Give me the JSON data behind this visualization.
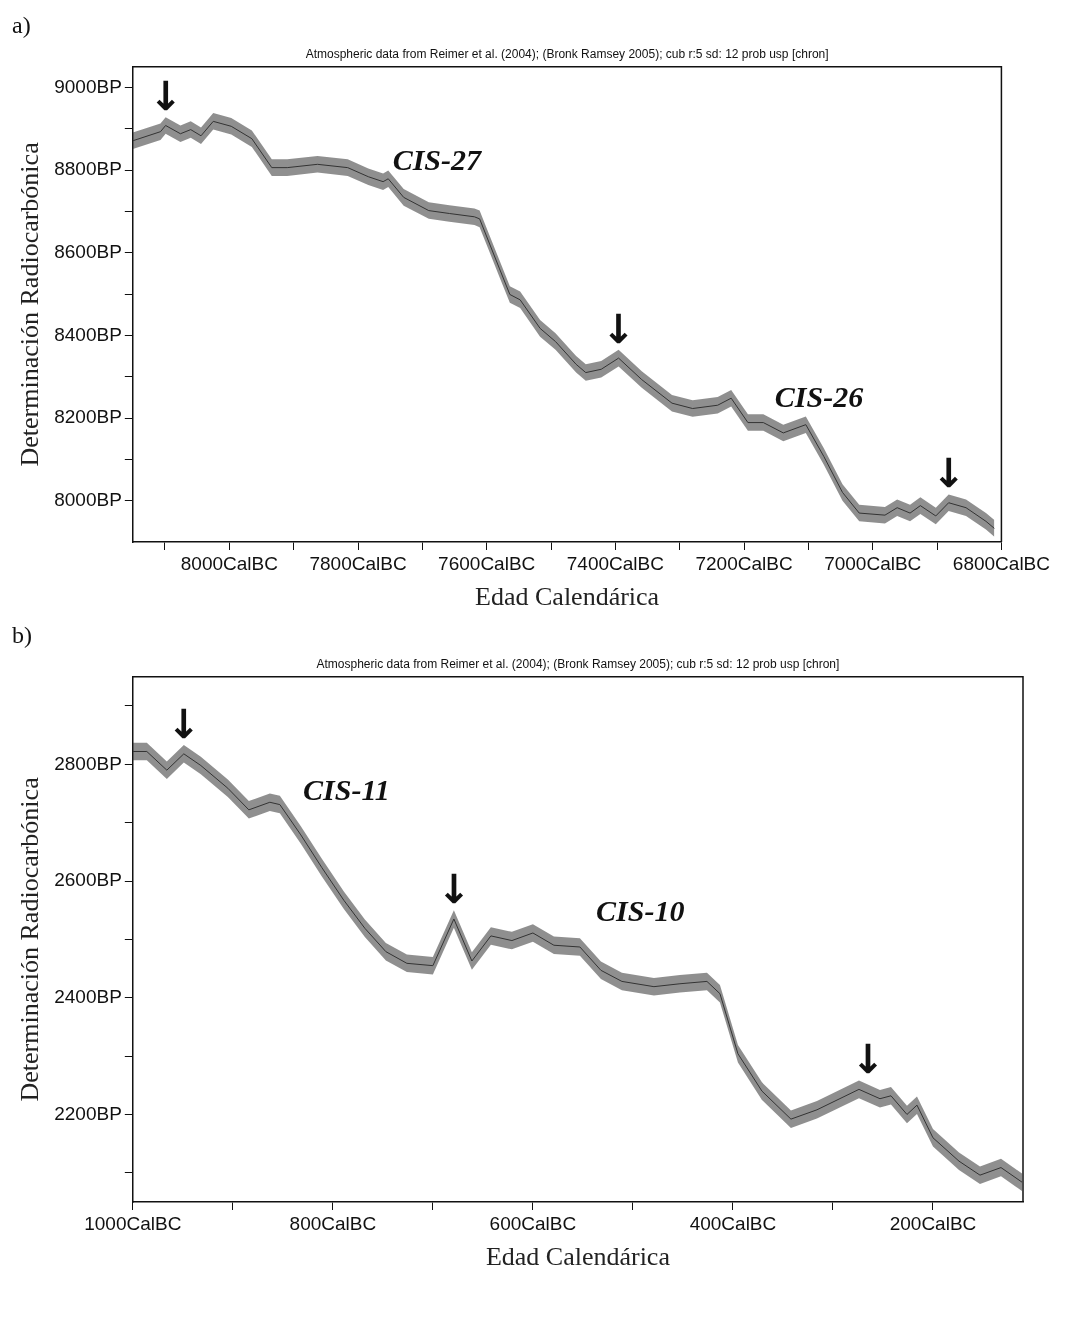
{
  "chart_data": [
    {
      "type": "line",
      "title": "a)",
      "xlabel": "Edad Calendárica",
      "ylabel": "Determinación Radiocarbónica",
      "x": [
        8150,
        8107,
        8099,
        8076,
        8060,
        8044,
        8025,
        7997,
        7965,
        7934,
        7910,
        7863,
        7816,
        7784,
        7761,
        7753,
        7729,
        7690,
        7658,
        7619,
        7611,
        7580,
        7564,
        7548,
        7517,
        7493,
        7461,
        7446,
        7422,
        7395,
        7359,
        7312,
        7280,
        7241,
        7220,
        7194,
        7170,
        7139,
        7104,
        7076,
        7047,
        7021,
        6981,
        6962,
        6942,
        6926,
        6902,
        6882,
        6855,
        6824,
        6811
      ],
      "series": [
        {
          "color": "#333333",
          "values": [
            8871,
            8893,
            8908,
            8888,
            8898,
            8883,
            8918,
            8906,
            8876,
            8806,
            8806,
            8814,
            8806,
            8784,
            8772,
            8779,
            8734,
            8702,
            8695,
            8687,
            8682,
            8561,
            8499,
            8486,
            8417,
            8385,
            8330,
            8310,
            8318,
            8345,
            8293,
            8236,
            8223,
            8231,
            8248,
            8189,
            8189,
            8164,
            8184,
            8107,
            8020,
            7970,
            7965,
            7983,
            7970,
            7988,
            7963,
            7995,
            7983,
            7950,
            7933
          ],
          "lower": [
            8851,
            8873,
            8888,
            8868,
            8878,
            8863,
            8898,
            8886,
            8856,
            8786,
            8786,
            8794,
            8786,
            8764,
            8752,
            8759,
            8714,
            8682,
            8675,
            8667,
            8662,
            8541,
            8479,
            8466,
            8397,
            8365,
            8310,
            8290,
            8298,
            8325,
            8273,
            8216,
            8203,
            8211,
            8228,
            8169,
            8169,
            8144,
            8164,
            8087,
            8000,
            7950,
            7945,
            7963,
            7950,
            7968,
            7943,
            7975,
            7963,
            7930,
            7913
          ],
          "upper": [
            8891,
            8913,
            8928,
            8908,
            8918,
            8903,
            8938,
            8926,
            8896,
            8826,
            8826,
            8834,
            8826,
            8804,
            8792,
            8799,
            8754,
            8722,
            8715,
            8707,
            8702,
            8581,
            8519,
            8506,
            8437,
            8405,
            8350,
            8330,
            8338,
            8365,
            8313,
            8256,
            8243,
            8251,
            8268,
            8209,
            8209,
            8184,
            8204,
            8127,
            8040,
            7990,
            7985,
            8003,
            7990,
            8008,
            7983,
            8015,
            8003,
            7970,
            7953
          ]
        }
      ],
      "xlim": [
        8150,
        6800
      ],
      "ylim": [
        7900,
        9050
      ],
      "xticks": [
        {
          "value": 8100,
          "label": null
        },
        {
          "value": 8000,
          "label": "8000CalBC"
        },
        {
          "value": 7900,
          "label": null
        },
        {
          "value": 7800,
          "label": "7800CalBC"
        },
        {
          "value": 7700,
          "label": null
        },
        {
          "value": 7600,
          "label": "7600CalBC"
        },
        {
          "value": 7500,
          "label": null
        },
        {
          "value": 7400,
          "label": "7400CalBC"
        },
        {
          "value": 7300,
          "label": null
        },
        {
          "value": 7200,
          "label": "7200CalBC"
        },
        {
          "value": 7100,
          "label": null
        },
        {
          "value": 7000,
          "label": "7000CalBC"
        },
        {
          "value": 6900,
          "label": null
        },
        {
          "value": 6800,
          "label": "6800CalBC"
        }
      ],
      "yticks": [
        {
          "value": 8000,
          "label": "8000BP"
        },
        {
          "value": 8100,
          "label": null
        },
        {
          "value": 8200,
          "label": "8200BP"
        },
        {
          "value": 8300,
          "label": null
        },
        {
          "value": 8400,
          "label": "8400BP"
        },
        {
          "value": 8500,
          "label": null
        },
        {
          "value": 8600,
          "label": "8600BP"
        },
        {
          "value": 8700,
          "label": null
        },
        {
          "value": 8800,
          "label": "8800BP"
        },
        {
          "value": 8900,
          "label": null
        },
        {
          "value": 9000,
          "label": "9000BP"
        }
      ],
      "annotations": [
        "Atmospheric data from Reimer et al. (2004); (Bronk Ramsey 2005); cub r:5 sd: 12 prob usp [chron]",
        "CIS-27",
        "CIS-26",
        {
          "text": "↓",
          "x": 8099,
          "y": 8908
        },
        {
          "text": "↓",
          "x": 7395,
          "y": 8345
        },
        {
          "text": "↓",
          "x": 6882,
          "y": 7995
        }
      ]
    },
    {
      "type": "line",
      "title": "b)",
      "xlabel": "Edad Calendárica",
      "ylabel": "Determinación Radiocarbónica",
      "x": [
        1000,
        986,
        966,
        949,
        932,
        905,
        884,
        863,
        853,
        832,
        811,
        789,
        768,
        747,
        726,
        700,
        679,
        661,
        642,
        621,
        600,
        579,
        553,
        532,
        511,
        479,
        453,
        426,
        413,
        395,
        371,
        342,
        316,
        274,
        253,
        242,
        226,
        216,
        200,
        174,
        153,
        132,
        111
      ],
      "series": [
        {
          "color": "#333333",
          "values": [
            2822,
            2822,
            2790,
            2818,
            2798,
            2759,
            2722,
            2735,
            2731,
            2679,
            2623,
            2567,
            2519,
            2479,
            2459,
            2455,
            2535,
            2463,
            2506,
            2498,
            2511,
            2490,
            2487,
            2447,
            2428,
            2419,
            2424,
            2428,
            2407,
            2304,
            2240,
            2192,
            2208,
            2243,
            2227,
            2232,
            2200,
            2216,
            2160,
            2120,
            2096,
            2109,
            2084
          ],
          "lower": [
            2807,
            2807,
            2775,
            2803,
            2783,
            2744,
            2707,
            2720,
            2716,
            2664,
            2608,
            2552,
            2504,
            2464,
            2444,
            2440,
            2520,
            2448,
            2491,
            2483,
            2496,
            2475,
            2472,
            2432,
            2413,
            2404,
            2409,
            2413,
            2392,
            2289,
            2225,
            2177,
            2193,
            2228,
            2212,
            2217,
            2185,
            2201,
            2145,
            2105,
            2081,
            2094,
            2069
          ],
          "upper": [
            2837,
            2837,
            2805,
            2833,
            2813,
            2774,
            2737,
            2750,
            2746,
            2694,
            2638,
            2582,
            2534,
            2494,
            2474,
            2470,
            2550,
            2478,
            2521,
            2513,
            2526,
            2505,
            2502,
            2462,
            2443,
            2434,
            2439,
            2443,
            2422,
            2319,
            2255,
            2207,
            2223,
            2258,
            2242,
            2247,
            2215,
            2231,
            2175,
            2135,
            2111,
            2124,
            2099
          ]
        }
      ],
      "xlim": [
        1000,
        110
      ],
      "ylim": [
        2050,
        2950
      ],
      "xticks": [
        {
          "value": 1000,
          "label": "1000CalBC"
        },
        {
          "value": 900,
          "label": null
        },
        {
          "value": 800,
          "label": "800CalBC"
        },
        {
          "value": 700,
          "label": null
        },
        {
          "value": 600,
          "label": "600CalBC"
        },
        {
          "value": 500,
          "label": null
        },
        {
          "value": 400,
          "label": "400CalBC"
        },
        {
          "value": 300,
          "label": null
        },
        {
          "value": 200,
          "label": "200CalBC"
        }
      ],
      "yticks": [
        {
          "value": 2100,
          "label": null
        },
        {
          "value": 2200,
          "label": "2200BP"
        },
        {
          "value": 2300,
          "label": null
        },
        {
          "value": 2400,
          "label": "2400BP"
        },
        {
          "value": 2500,
          "label": null
        },
        {
          "value": 2600,
          "label": "2600BP"
        },
        {
          "value": 2700,
          "label": null
        },
        {
          "value": 2800,
          "label": "2800BP"
        },
        {
          "value": 2900,
          "label": null
        }
      ],
      "annotations": [
        "Atmospheric data from Reimer et al. (2004); (Bronk Ramsey 2005); cub r:5 sd: 12 prob usp [chron]",
        "CIS-11",
        "CIS-10",
        {
          "text": "↓",
          "x": 949,
          "y": 2818
        },
        {
          "text": "↓",
          "x": 679,
          "y": 2535
        },
        {
          "text": "↓",
          "x": 265,
          "y": 2245
        }
      ]
    }
  ]
}
